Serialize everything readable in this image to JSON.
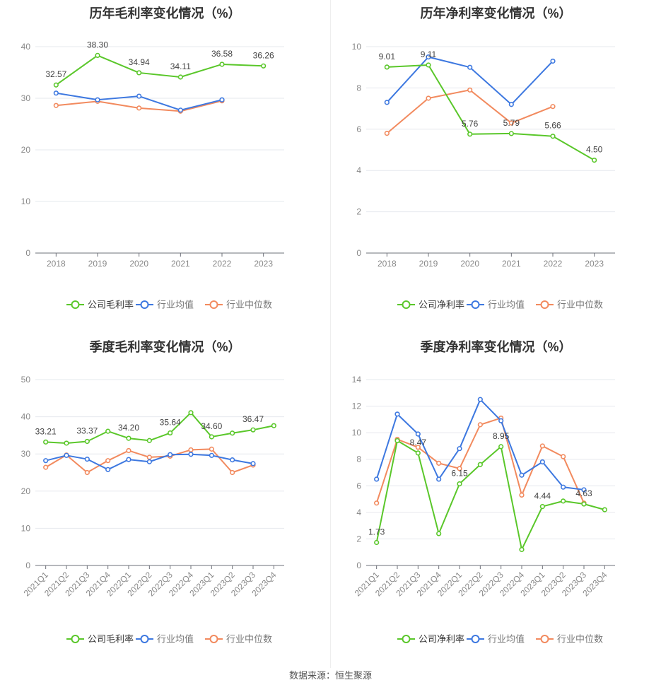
{
  "colors": {
    "company": "#5ac72a",
    "avg": "#3d78e0",
    "median": "#f28a5e"
  },
  "footer": {
    "source": "数据来源：恒生聚源"
  },
  "chart_data": [
    {
      "type": "line",
      "title": "历年毛利率变化情况（%）",
      "categories": [
        "2018",
        "2019",
        "2020",
        "2021",
        "2022",
        "2023"
      ],
      "ylim": [
        0,
        40
      ],
      "yticks": [
        0,
        10,
        20,
        30,
        40
      ],
      "series": [
        {
          "name": "公司毛利率",
          "values": [
            32.57,
            38.3,
            34.94,
            34.11,
            36.58,
            36.26
          ]
        },
        {
          "name": "行业均值",
          "values": [
            31.0,
            29.7,
            30.4,
            27.7,
            29.7,
            null
          ]
        },
        {
          "name": "行业中位数",
          "values": [
            28.6,
            29.4,
            28.1,
            27.5,
            29.5,
            null
          ]
        }
      ],
      "labels": [
        {
          "i": 0,
          "text": "32.57"
        },
        {
          "i": 1,
          "text": "38.30"
        },
        {
          "i": 2,
          "text": "34.94"
        },
        {
          "i": 3,
          "text": "34.11"
        },
        {
          "i": 4,
          "text": "36.58"
        },
        {
          "i": 5,
          "text": "36.26"
        }
      ],
      "rotate_x": false
    },
    {
      "type": "line",
      "title": "历年净利率变化情况（%）",
      "categories": [
        "2018",
        "2019",
        "2020",
        "2021",
        "2022",
        "2023"
      ],
      "ylim": [
        0,
        10
      ],
      "yticks": [
        0,
        2,
        4,
        6,
        8,
        10
      ],
      "series": [
        {
          "name": "公司净利率",
          "values": [
            9.01,
            9.11,
            5.76,
            5.79,
            5.66,
            4.5
          ]
        },
        {
          "name": "行业均值",
          "values": [
            7.3,
            9.5,
            9.0,
            7.2,
            9.3,
            null
          ]
        },
        {
          "name": "行业中位数",
          "values": [
            5.8,
            7.5,
            7.9,
            6.3,
            7.1,
            null
          ]
        }
      ],
      "labels": [
        {
          "i": 0,
          "text": "9.01"
        },
        {
          "i": 1,
          "text": "9.11"
        },
        {
          "i": 2,
          "text": "5.76"
        },
        {
          "i": 3,
          "text": "5.79"
        },
        {
          "i": 4,
          "text": "5.66"
        },
        {
          "i": 5,
          "text": "4.50"
        }
      ],
      "rotate_x": false
    },
    {
      "type": "line",
      "title": "季度毛利率变化情况（%）",
      "categories": [
        "2021Q1",
        "2021Q2",
        "2021Q3",
        "2021Q4",
        "2022Q1",
        "2022Q2",
        "2022Q3",
        "2022Q4",
        "2023Q1",
        "2023Q2",
        "2023Q3",
        "2023Q4"
      ],
      "ylim": [
        0,
        50
      ],
      "yticks": [
        0,
        10,
        20,
        30,
        40,
        50
      ],
      "series": [
        {
          "name": "公司毛利率",
          "values": [
            33.21,
            32.9,
            33.37,
            36.1,
            34.2,
            33.6,
            35.64,
            41.1,
            34.6,
            35.6,
            36.47,
            37.6
          ]
        },
        {
          "name": "行业均值",
          "values": [
            28.2,
            29.6,
            28.6,
            25.8,
            28.5,
            27.9,
            29.8,
            29.9,
            29.6,
            28.4,
            27.4,
            null
          ]
        },
        {
          "name": "行业中位数",
          "values": [
            26.4,
            29.7,
            25.0,
            28.2,
            30.9,
            29.1,
            29.4,
            31.1,
            31.3,
            25.0,
            27.0,
            null
          ]
        }
      ],
      "labels": [
        {
          "i": 0,
          "text": "33.21"
        },
        {
          "i": 2,
          "text": "33.37"
        },
        {
          "i": 4,
          "text": "34.20"
        },
        {
          "i": 6,
          "text": "35.64"
        },
        {
          "i": 8,
          "text": "34.60"
        },
        {
          "i": 10,
          "text": "36.47"
        }
      ],
      "rotate_x": true
    },
    {
      "type": "line",
      "title": "季度净利率变化情况（%）",
      "categories": [
        "2021Q1",
        "2021Q2",
        "2021Q3",
        "2021Q4",
        "2022Q1",
        "2022Q2",
        "2022Q3",
        "2022Q4",
        "2023Q1",
        "2023Q2",
        "2023Q3",
        "2023Q4"
      ],
      "ylim": [
        0,
        14
      ],
      "yticks": [
        0,
        2,
        4,
        6,
        8,
        10,
        12,
        14
      ],
      "series": [
        {
          "name": "公司净利率",
          "values": [
            1.73,
            9.4,
            8.47,
            2.4,
            6.15,
            7.6,
            8.95,
            1.2,
            4.44,
            4.85,
            4.63,
            4.2
          ]
        },
        {
          "name": "行业均值",
          "values": [
            6.5,
            11.4,
            9.9,
            6.5,
            8.8,
            12.5,
            10.9,
            6.8,
            7.8,
            5.9,
            5.7,
            null
          ]
        },
        {
          "name": "行业中位数",
          "values": [
            4.7,
            9.5,
            8.9,
            7.7,
            7.3,
            10.6,
            11.1,
            5.3,
            9.0,
            8.2,
            4.7,
            null
          ]
        }
      ],
      "labels": [
        {
          "i": 0,
          "text": "1.73"
        },
        {
          "i": 2,
          "text": "8.47"
        },
        {
          "i": 4,
          "text": "6.15"
        },
        {
          "i": 6,
          "text": "8.95"
        },
        {
          "i": 8,
          "text": "4.44"
        },
        {
          "i": 10,
          "text": "4.63"
        }
      ],
      "rotate_x": true
    }
  ]
}
